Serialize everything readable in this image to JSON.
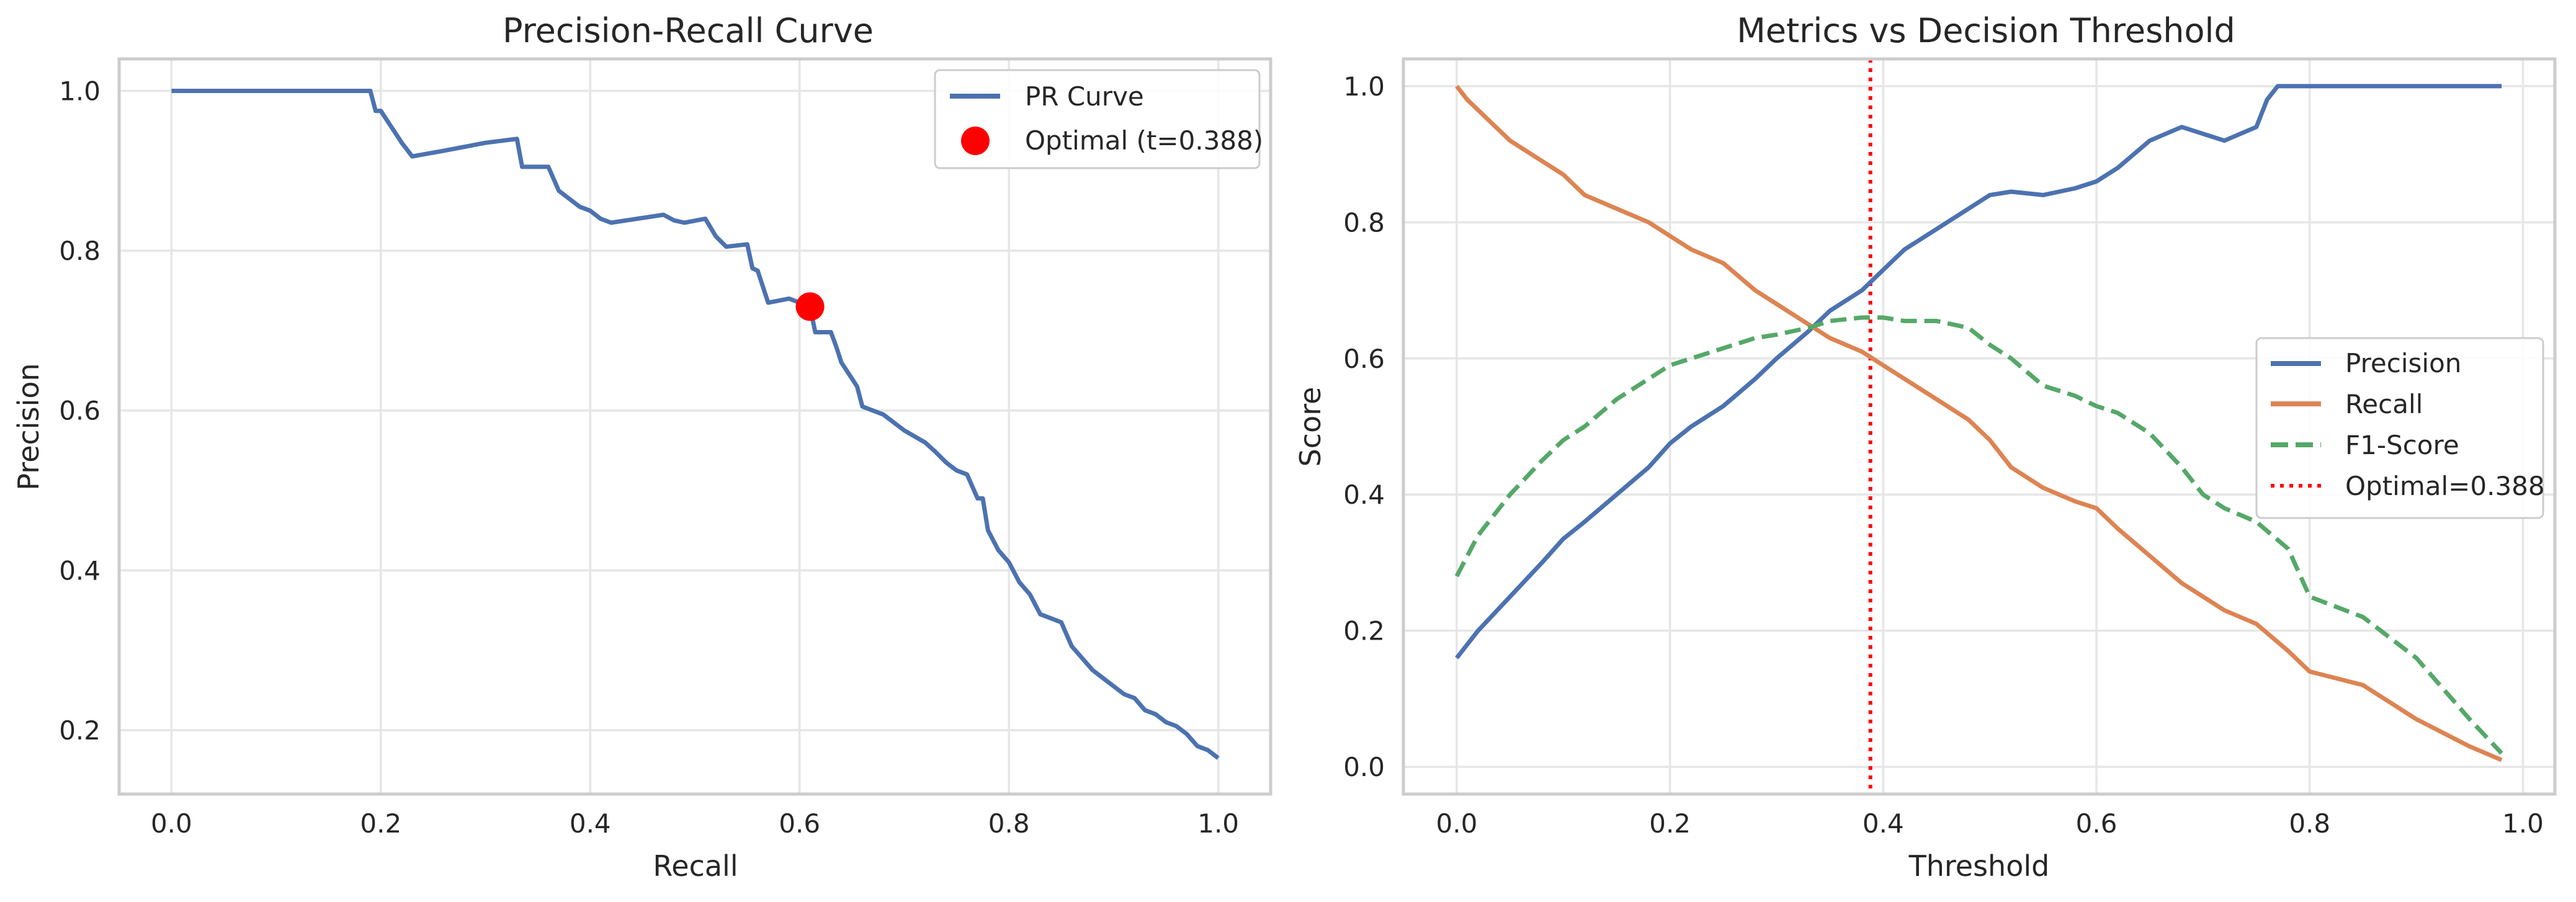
{
  "chart_data": [
    {
      "type": "line",
      "title": "Precision-Recall Curve",
      "xlabel": "Recall",
      "ylabel": "Precision",
      "xlim": [
        -0.05,
        1.05
      ],
      "ylim": [
        0.12,
        1.04
      ],
      "xticks": [
        0.0,
        0.2,
        0.4,
        0.6,
        0.8,
        1.0
      ],
      "xtick_labels": [
        "0.0",
        "0.2",
        "0.4",
        "0.6",
        "0.8",
        "1.0"
      ],
      "yticks": [
        0.2,
        0.4,
        0.6,
        0.8,
        1.0
      ],
      "ytick_labels": [
        "0.2",
        "0.4",
        "0.6",
        "0.8",
        "1.0"
      ],
      "grid": true,
      "legend_position": "upper right",
      "series": [
        {
          "name": "PR Curve",
          "color": "#4c72b0",
          "style": "solid",
          "x": [
            0.0,
            0.19,
            0.195,
            0.2,
            0.21,
            0.22,
            0.23,
            0.26,
            0.3,
            0.33,
            0.335,
            0.36,
            0.37,
            0.38,
            0.39,
            0.4,
            0.41,
            0.42,
            0.47,
            0.48,
            0.49,
            0.51,
            0.52,
            0.53,
            0.55,
            0.555,
            0.56,
            0.57,
            0.59,
            0.61,
            0.615,
            0.63,
            0.635,
            0.64,
            0.65,
            0.655,
            0.66,
            0.68,
            0.7,
            0.72,
            0.73,
            0.74,
            0.75,
            0.76,
            0.77,
            0.775,
            0.78,
            0.79,
            0.8,
            0.81,
            0.82,
            0.83,
            0.84,
            0.85,
            0.86,
            0.87,
            0.88,
            0.89,
            0.9,
            0.91,
            0.92,
            0.93,
            0.94,
            0.95,
            0.96,
            0.97,
            0.98,
            0.99,
            1.0
          ],
          "y": [
            1.0,
            1.0,
            0.975,
            0.975,
            0.955,
            0.935,
            0.918,
            0.925,
            0.935,
            0.94,
            0.905,
            0.905,
            0.875,
            0.865,
            0.855,
            0.85,
            0.84,
            0.835,
            0.845,
            0.838,
            0.835,
            0.84,
            0.818,
            0.805,
            0.808,
            0.778,
            0.775,
            0.735,
            0.74,
            0.73,
            0.698,
            0.698,
            0.68,
            0.66,
            0.64,
            0.63,
            0.605,
            0.595,
            0.575,
            0.56,
            0.548,
            0.535,
            0.525,
            0.52,
            0.49,
            0.49,
            0.45,
            0.425,
            0.41,
            0.385,
            0.37,
            0.345,
            0.34,
            0.335,
            0.305,
            0.29,
            0.275,
            0.265,
            0.255,
            0.245,
            0.24,
            0.225,
            0.22,
            0.21,
            0.205,
            0.195,
            0.18,
            0.175,
            0.165
          ]
        }
      ],
      "points": [
        {
          "name": "Optimal (t=0.388)",
          "x": 0.61,
          "y": 0.73,
          "color": "#ff0000"
        }
      ]
    },
    {
      "type": "line",
      "title": "Metrics vs Decision Threshold",
      "xlabel": "Threshold",
      "ylabel": "Score",
      "xlim": [
        -0.05,
        1.03
      ],
      "ylim": [
        -0.04,
        1.04
      ],
      "xticks": [
        0.0,
        0.2,
        0.4,
        0.6,
        0.8,
        1.0
      ],
      "xtick_labels": [
        "0.0",
        "0.2",
        "0.4",
        "0.6",
        "0.8",
        "1.0"
      ],
      "yticks": [
        0.0,
        0.2,
        0.4,
        0.6,
        0.8,
        1.0
      ],
      "ytick_labels": [
        "0.0",
        "0.2",
        "0.4",
        "0.6",
        "0.8",
        "1.0"
      ],
      "grid": true,
      "legend_position": "center right",
      "series": [
        {
          "name": "Precision",
          "color": "#4c72b0",
          "style": "solid",
          "x": [
            0.0,
            0.02,
            0.05,
            0.08,
            0.1,
            0.12,
            0.15,
            0.18,
            0.2,
            0.22,
            0.25,
            0.28,
            0.3,
            0.33,
            0.35,
            0.38,
            0.4,
            0.42,
            0.45,
            0.48,
            0.5,
            0.52,
            0.55,
            0.58,
            0.6,
            0.62,
            0.65,
            0.68,
            0.7,
            0.72,
            0.75,
            0.76,
            0.77,
            0.8,
            0.85,
            0.9,
            0.95,
            0.98
          ],
          "y": [
            0.16,
            0.2,
            0.25,
            0.3,
            0.335,
            0.36,
            0.4,
            0.44,
            0.475,
            0.5,
            0.53,
            0.57,
            0.6,
            0.64,
            0.67,
            0.7,
            0.73,
            0.76,
            0.79,
            0.82,
            0.84,
            0.845,
            0.84,
            0.85,
            0.86,
            0.88,
            0.92,
            0.94,
            0.93,
            0.92,
            0.94,
            0.98,
            1.0,
            1.0,
            1.0,
            1.0,
            1.0,
            1.0
          ]
        },
        {
          "name": "Recall",
          "color": "#dd8452",
          "style": "solid",
          "x": [
            0.0,
            0.01,
            0.03,
            0.05,
            0.08,
            0.1,
            0.12,
            0.15,
            0.18,
            0.2,
            0.22,
            0.25,
            0.28,
            0.3,
            0.33,
            0.35,
            0.38,
            0.4,
            0.42,
            0.45,
            0.48,
            0.5,
            0.52,
            0.55,
            0.58,
            0.6,
            0.62,
            0.65,
            0.68,
            0.7,
            0.72,
            0.75,
            0.78,
            0.8,
            0.85,
            0.9,
            0.95,
            0.98
          ],
          "y": [
            1.0,
            0.98,
            0.95,
            0.92,
            0.89,
            0.87,
            0.84,
            0.82,
            0.8,
            0.78,
            0.76,
            0.74,
            0.7,
            0.68,
            0.65,
            0.63,
            0.61,
            0.59,
            0.57,
            0.54,
            0.51,
            0.48,
            0.44,
            0.41,
            0.39,
            0.38,
            0.35,
            0.31,
            0.27,
            0.25,
            0.23,
            0.21,
            0.17,
            0.14,
            0.12,
            0.07,
            0.03,
            0.01
          ]
        },
        {
          "name": "F1-Score",
          "color": "#55a868",
          "style": "dashed",
          "x": [
            0.0,
            0.02,
            0.05,
            0.08,
            0.1,
            0.12,
            0.15,
            0.18,
            0.2,
            0.22,
            0.25,
            0.28,
            0.3,
            0.33,
            0.35,
            0.38,
            0.4,
            0.42,
            0.45,
            0.48,
            0.5,
            0.52,
            0.55,
            0.58,
            0.6,
            0.62,
            0.65,
            0.68,
            0.7,
            0.72,
            0.75,
            0.78,
            0.8,
            0.85,
            0.9,
            0.95,
            0.98
          ],
          "y": [
            0.28,
            0.34,
            0.4,
            0.45,
            0.48,
            0.5,
            0.54,
            0.57,
            0.59,
            0.6,
            0.615,
            0.63,
            0.635,
            0.645,
            0.655,
            0.66,
            0.66,
            0.655,
            0.655,
            0.645,
            0.62,
            0.6,
            0.56,
            0.545,
            0.53,
            0.52,
            0.49,
            0.44,
            0.4,
            0.38,
            0.36,
            0.32,
            0.25,
            0.22,
            0.16,
            0.07,
            0.02
          ]
        }
      ],
      "vlines": [
        {
          "name": "Optimal=0.388",
          "x": 0.388,
          "color": "#ff0000",
          "style": "dotted"
        }
      ]
    }
  ]
}
